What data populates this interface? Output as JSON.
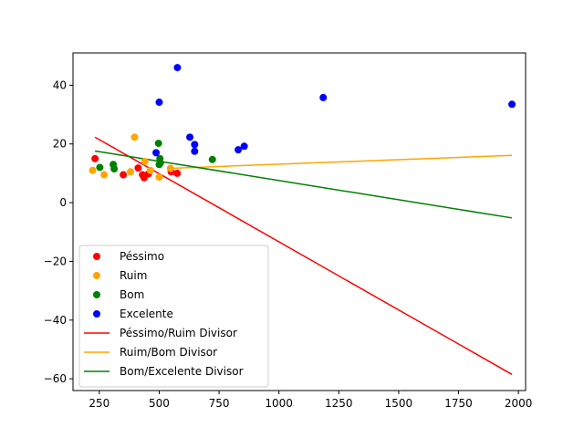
{
  "chart_data": {
    "type": "scatter",
    "title": "",
    "xlabel": "",
    "ylabel": "",
    "xlim": [
      140,
      2030
    ],
    "ylim": [
      -64,
      51
    ],
    "xticks": [
      250,
      500,
      750,
      1000,
      1250,
      1500,
      1750,
      2000
    ],
    "yticks": [
      -60,
      -40,
      -20,
      0,
      20,
      40
    ],
    "xtick_labels": [
      "250",
      "500",
      "750",
      "1000",
      "1250",
      "1500",
      "1750",
      "2000"
    ],
    "ytick_labels": [
      "−60",
      "−40",
      "−20",
      "0",
      "20",
      "40"
    ],
    "grid": false,
    "legend_position": "lower-left",
    "series": [
      {
        "name": "Péssimo",
        "color": "#ff0000",
        "points": [
          [
            232,
            15
          ],
          [
            350,
            9.5
          ],
          [
            412,
            11.8
          ],
          [
            430,
            9.5
          ],
          [
            437,
            8.5
          ],
          [
            455,
            9.8
          ],
          [
            550,
            10.5
          ],
          [
            575,
            10
          ]
        ]
      },
      {
        "name": "Ruim",
        "color": "#ffa500",
        "points": [
          [
            222,
            11
          ],
          [
            270,
            9.5
          ],
          [
            380,
            10.5
          ],
          [
            397,
            22.3
          ],
          [
            440,
            14
          ],
          [
            463,
            11
          ],
          [
            500,
            8.7
          ],
          [
            547,
            11.7
          ]
        ]
      },
      {
        "name": "Bom",
        "color": "#008000",
        "points": [
          [
            252,
            12
          ],
          [
            308,
            13
          ],
          [
            312,
            11.5
          ],
          [
            497,
            20.2
          ],
          [
            500,
            13
          ],
          [
            503,
            15
          ],
          [
            505,
            13.5
          ],
          [
            722,
            14.7
          ]
        ]
      },
      {
        "name": "Excelente",
        "color": "#0000ff",
        "points": [
          [
            576,
            46
          ],
          [
            500,
            34.2
          ],
          [
            487,
            17
          ],
          [
            628,
            22.3
          ],
          [
            648,
            19.8
          ],
          [
            648,
            17.5
          ],
          [
            830,
            18
          ],
          [
            855,
            19.2
          ],
          [
            1185,
            35.8
          ],
          [
            1973,
            33.5
          ]
        ]
      }
    ],
    "lines": [
      {
        "name": "Péssimo/Ruim Divisor",
        "color": "#ff0000",
        "x": [
          232,
          1973
        ],
        "y": [
          22.3,
          -58.5
        ]
      },
      {
        "name": "Ruim/Bom Divisor",
        "color": "#ffa500",
        "x": [
          547,
          1973
        ],
        "y": [
          11.7,
          16.1
        ]
      },
      {
        "name": "Bom/Excelente Divisor",
        "color": "#008000",
        "x": [
          232,
          1973
        ],
        "y": [
          17.6,
          -5.2
        ]
      }
    ]
  }
}
